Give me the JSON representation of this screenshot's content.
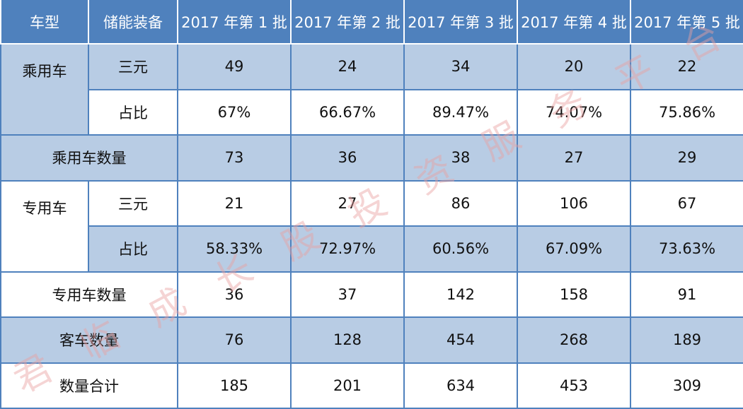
{
  "header": {
    "col_type": "车型",
    "col_battery": "储能装备",
    "batches": [
      "2017 年第 1 批",
      "2017 年第 2 批",
      "2017 年第 3 批",
      "2017 年第 4 批",
      "2017 年第 5 批"
    ]
  },
  "passenger": {
    "label": "乘用车",
    "ternary": {
      "label": "三元",
      "values": [
        "49",
        "24",
        "34",
        "20",
        "22"
      ]
    },
    "ratio": {
      "label": "占比",
      "values": [
        "67%",
        "66.67%",
        "89.47%",
        "74.07%",
        "75.86%"
      ]
    },
    "count": {
      "label": "乘用车数量",
      "values": [
        "73",
        "36",
        "38",
        "27",
        "29"
      ]
    }
  },
  "special": {
    "label": "专用车",
    "ternary": {
      "label": "三元",
      "values": [
        "21",
        "27",
        "86",
        "106",
        "67"
      ]
    },
    "ratio": {
      "label": "占比",
      "values": [
        "58.33%",
        "72.97%",
        "60.56%",
        "67.09%",
        "73.63%"
      ]
    },
    "count": {
      "label": "专用车数量",
      "values": [
        "36",
        "37",
        "142",
        "158",
        "91"
      ]
    }
  },
  "bus": {
    "label": "客车数量",
    "values": [
      "76",
      "128",
      "454",
      "268",
      "189"
    ]
  },
  "total": {
    "label": "数量合计",
    "values": [
      "185",
      "201",
      "634",
      "453",
      "309"
    ]
  },
  "watermark": {
    "text": "君临成长股投资服务平台",
    "color": "#e8a0a0"
  }
}
